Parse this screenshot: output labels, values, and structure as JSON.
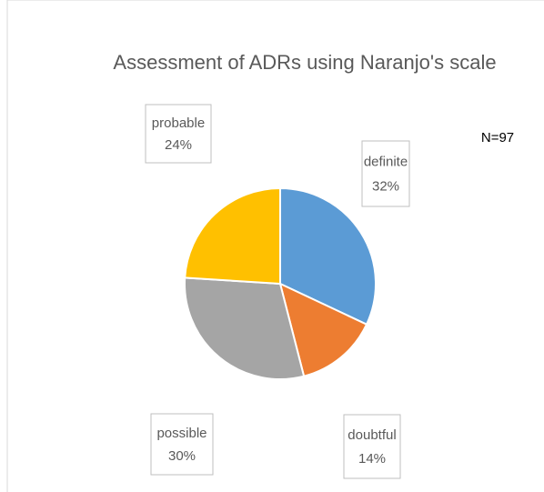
{
  "chart_data": {
    "type": "pie",
    "title": "Assessment of ADRs using Naranjo's scale",
    "categories": [
      "definite",
      "doubtful",
      "possible",
      "probable"
    ],
    "values": [
      32,
      14,
      30,
      24
    ],
    "value_labels": [
      "32%",
      "14%",
      "30%",
      "24%"
    ],
    "colors": [
      "#5b9bd5",
      "#ed7d31",
      "#a5a5a5",
      "#ffc000"
    ],
    "annotation": "N=97"
  }
}
